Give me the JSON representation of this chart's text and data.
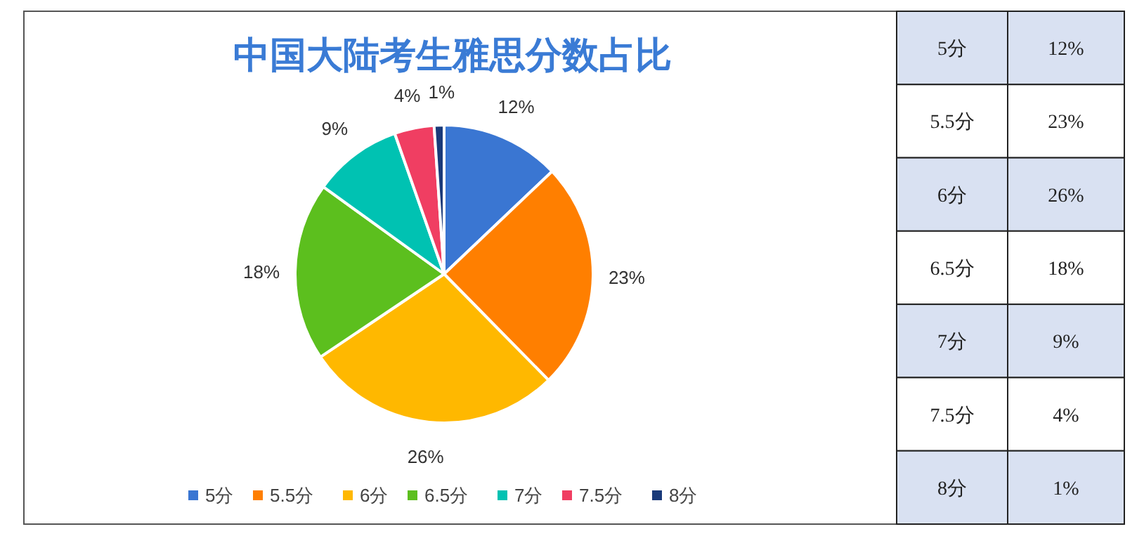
{
  "chart_data": {
    "type": "pie",
    "title": "中国大陆考生雅思分数占比",
    "categories": [
      "5分",
      "5.5分",
      "6分",
      "6.5分",
      "7分",
      "7.5分",
      "8分"
    ],
    "values": [
      12,
      23,
      26,
      18,
      9,
      4,
      1
    ],
    "value_labels": [
      "12%",
      "23%",
      "26%",
      "18%",
      "9%",
      "4%",
      "1%"
    ],
    "colors": [
      "#3a76d2",
      "#ff7f00",
      "#ffb800",
      "#5cbf1e",
      "#00c2b2",
      "#f03e62",
      "#1a3a7a"
    ],
    "legend": "bottom"
  }
}
